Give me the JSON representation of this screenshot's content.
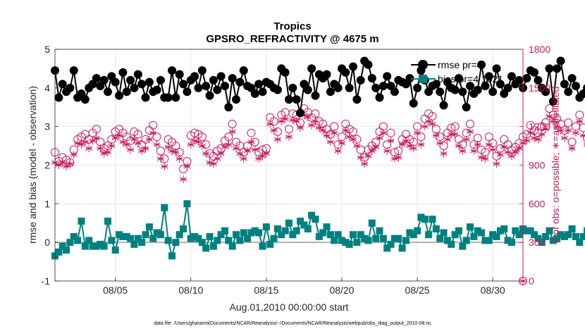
{
  "chart_data": {
    "type": "line",
    "title": "Tropics",
    "subtitle": "GPSRO_REFRACTIVITY @ 4675 m",
    "xlabel": "Aug.01,2010 00:00:00 start",
    "ylabel": "rmse and bias (model - observation)",
    "y2label": "# of obs: o=possible; ∗=assimilated",
    "footnote": "data file: /Users/gharamti/Documents/NCAR/Reanalysis/~/Documents/NCAR/Reanalysis/webpub/obs_diag_output_2010-08.nc",
    "xlim": [
      1,
      32
    ],
    "ylim": [
      -1,
      5
    ],
    "y2lim": [
      0,
      1800
    ],
    "x_ticks": [
      5,
      10,
      15,
      20,
      25,
      30
    ],
    "x_tick_labels": [
      "08/05",
      "08/10",
      "08/15",
      "08/20",
      "08/25",
      "08/30"
    ],
    "y_ticks": [
      -1,
      0,
      1,
      2,
      3,
      4,
      5
    ],
    "y_tick_labels": [
      "-1",
      "0",
      "1",
      "2",
      "3",
      "4",
      "5"
    ],
    "y2_ticks": [
      0,
      300,
      600,
      900,
      1200,
      1500,
      1800
    ],
    "y2_tick_labels": [
      "0",
      "300",
      "600",
      "900",
      "1200",
      "1500",
      "1800"
    ],
    "grid": true,
    "legend_position": "top-right",
    "x_step_days": 0.25,
    "x_start_day": 1.0,
    "series": [
      {
        "name": "rmse pr=4",
        "legend_label": "rmse pr=4",
        "axis": "left",
        "color": "#000000",
        "marker": "circle",
        "values": [
          4.45,
          3.75,
          4.1,
          3.9,
          4.0,
          4.45,
          3.75,
          3.85,
          3.7,
          4.0,
          4.1,
          4.25,
          4.05,
          4.2,
          3.9,
          4.3,
          4.15,
          3.8,
          4.4,
          3.9,
          4.2,
          4.0,
          4.35,
          4.1,
          3.75,
          4.15,
          3.9,
          3.95,
          4.2,
          3.75,
          3.75,
          4.45,
          3.75,
          4.35,
          4.1,
          3.9,
          4.2,
          4.3,
          4.0,
          4.45,
          4.05,
          3.8,
          4.2,
          3.95,
          4.3,
          4.05,
          3.5,
          4.25,
          3.7,
          4.15,
          4.45,
          4.05,
          4.0,
          3.85,
          4.1,
          3.9,
          4.15,
          4.1,
          4.0,
          3.95,
          4.5,
          4.4,
          3.7,
          4.0,
          3.7,
          3.35,
          4.1,
          3.95,
          4.5,
          3.8,
          4.35,
          4.25,
          4.35,
          3.9,
          4.1,
          4.0,
          4.5,
          4.4,
          4.0,
          4.55,
          3.7,
          4.2,
          4.7,
          4.6,
          4.25,
          4.0,
          3.75,
          4.05,
          4.3,
          4.05,
          3.9,
          4.2,
          4.15,
          4.1,
          4.25,
          3.6,
          4.0,
          4.45,
          4.2,
          3.9,
          4.05,
          4.1,
          3.9,
          3.55,
          4.15,
          4.0,
          3.95,
          4.25,
          3.9,
          3.5,
          4.05,
          3.85,
          3.95,
          4.6,
          4.05,
          4.3,
          3.9,
          4.5,
          4.1,
          3.85,
          4.0,
          4.3,
          4.1,
          4.2,
          4.0,
          4.25,
          4.45,
          4.4,
          4.2,
          4.0,
          3.9,
          4.5,
          3.65,
          4.5,
          4.7,
          4.1,
          3.9,
          4.25,
          4.05,
          3.75,
          3.85,
          4.0,
          3.75,
          3.9,
          4.05,
          4.55,
          3.6,
          4.15,
          4.45,
          3.95,
          3.95,
          4.3,
          4.1,
          4.0,
          4.25,
          4.45,
          4.0,
          3.95,
          4.0,
          3.95,
          4.1,
          4.3,
          3.95,
          4.6,
          4.0,
          4.1,
          3.95,
          4.05,
          4.25,
          4.15,
          4.0,
          3.85,
          4.05,
          3.95,
          4.1,
          4.05,
          3.9,
          4.3,
          4.0,
          4.15,
          4.55,
          3.95,
          4.0,
          4.05,
          4.3,
          4.0,
          4.75,
          4.0,
          4.1,
          4.25,
          4.1,
          4.05,
          3.95,
          4.35,
          4.0,
          4.0,
          4.0,
          4.4,
          4.2,
          3.95,
          3.95,
          4.0,
          4.25,
          4.45
        ]
      },
      {
        "name": "bias pr=4 1621",
        "legend_label": "bias pr=4 1621",
        "axis": "left",
        "color": "#008080",
        "marker": "square",
        "values": [
          -0.35,
          -0.25,
          -0.1,
          -0.2,
          0.0,
          0.15,
          0.05,
          0.55,
          -0.1,
          0.05,
          -0.1,
          -0.1,
          -0.05,
          -0.1,
          0.55,
          0.05,
          -0.2,
          0.2,
          0.15,
          0.15,
          0.1,
          -0.05,
          0.1,
          0.0,
          0.2,
          0.4,
          0.1,
          0.25,
          0.2,
          0.9,
          0.05,
          -0.35,
          0.0,
          0.2,
          0.35,
          1.0,
          0.1,
          0.15,
          0.1,
          0.0,
          -0.15,
          0.15,
          -0.1,
          0.05,
          0.2,
          0.3,
          0.05,
          -0.1,
          0.2,
          0.05,
          0.25,
          0.1,
          0.25,
          0.3,
          0.25,
          -0.1,
          0.4,
          -0.05,
          0.1,
          0.35,
          0.2,
          0.3,
          0.5,
          0.2,
          0.3,
          0.55,
          0.45,
          0.35,
          0.7,
          0.6,
          0.15,
          0.25,
          0.4,
          0.2,
          0.05,
          0.2,
          0.05,
          0.0,
          -0.05,
          0.2,
          0.0,
          0.2,
          0.1,
          0.05,
          0.5,
          0.1,
          0.3,
          0.1,
          -0.15,
          -0.05,
          0.1,
          0.1,
          -0.15,
          0.05,
          0.25,
          0.2,
          0.3,
          0.65,
          0.6,
          0.2,
          0.6,
          0.35,
          0.1,
          0.25,
          0.05,
          -0.05,
          0.2,
          0.3,
          -0.1,
          0.05,
          0.4,
          0.15,
          0.3,
          0.25,
          0.05,
          0.05,
          0.2,
          0.15,
          0.3,
          0.35,
          0.05,
          0.0,
          0.3,
          0.2,
          0.35,
          0.3,
          0.3,
          0.2,
          0.1,
          0.0,
          0.15,
          0.3,
          0.05,
          0.1,
          0.2,
          0.15,
          0.2,
          0.35,
          0.15,
          0.0,
          0.15,
          0.3,
          0.0,
          0.1,
          -0.05,
          0.15,
          0.2,
          0.1,
          0.05,
          0.5,
          0.45,
          0.3,
          0.2,
          0.15,
          0.05,
          -0.1,
          -0.35,
          -0.35,
          -0.25,
          -0.15,
          -0.75,
          -0.75,
          -0.45,
          -0.45,
          -0.2,
          -0.45,
          0.0,
          0.1,
          0.05,
          0.25,
          0.0,
          0.4,
          0.3,
          0.05,
          0.2,
          0.3,
          0.2,
          0.25,
          0.45,
          0.55,
          0.6,
          0.4,
          0.35,
          0.2,
          0.15,
          0.25,
          0.0,
          0.1,
          0.15,
          0.05,
          0.2,
          0.2,
          0.35,
          0.3,
          0.15,
          0.1,
          0.45,
          0.3,
          0.25,
          0.35,
          0.3,
          0.5,
          0.45,
          0.6,
          0.55,
          0.4,
          0.35,
          0.4
        ]
      },
      {
        "name": "possible obs",
        "axis": "right",
        "color": "#c8195a",
        "marker": "open-circle",
        "values": [
          1000,
          930,
          960,
          940,
          920,
          1020,
          1100,
          1120,
          1140,
          1100,
          1150,
          1180,
          1080,
          1030,
          1050,
          1100,
          1160,
          1180,
          1150,
          1120,
          1090,
          1160,
          1140,
          1060,
          1100,
          1170,
          1210,
          1120,
          1010,
          950,
          1100,
          1080,
          1050,
          1000,
          870,
          930,
          1130,
          1150,
          1140,
          1120,
          1060,
          990,
          970,
          1010,
          1030,
          1090,
          1120,
          1220,
          1080,
          1050,
          1000,
          1050,
          1150,
          1080,
          1000,
          1020,
          1030,
          1270,
          1240,
          1160,
          1290,
          1310,
          1180,
          1300,
          1290,
          1230,
          1340,
          1310,
          1270,
          1300,
          1240,
          1220,
          1180,
          1140,
          1200,
          1060,
          1120,
          1220,
          1180,
          1160,
          1100,
          1020,
          960,
          1020,
          1050,
          1080,
          1160,
          1200,
          1060,
          1150,
          1000,
          1010,
          1100,
          1140,
          1100,
          1080,
          1200,
          1120,
          1260,
          1300,
          1280,
          1180,
          1120,
          1050,
          1150,
          1190,
          1200,
          1100,
          1060,
          1150,
          1220,
          1060,
          1110,
          1020,
          1000,
          1120,
          1070,
          970,
          1030,
          1100,
          1060,
          1020,
          1040,
          1070,
          1120,
          1140,
          1210,
          1170,
          1150,
          1200,
          1230,
          1340,
          1290,
          1260,
          1220,
          1170,
          1230,
          1080,
          1200,
          1290,
          1190,
          1110,
          1150,
          1090,
          1110,
          1080,
          1210,
          1180,
          1290,
          1090,
          1150,
          1190,
          1070,
          1200,
          1220,
          1130,
          1230,
          1160,
          1000,
          950,
          1120,
          1080,
          1020,
          1100,
          1100,
          1050,
          1080,
          1040,
          1080,
          1120,
          1050,
          1010,
          880,
          920,
          1010,
          900,
          960,
          1030,
          1150,
          1180,
          1100,
          1080,
          1060,
          1020,
          1090,
          1110,
          1080,
          1020,
          950,
          960,
          1000,
          1010,
          1110,
          1080,
          1030,
          1040,
          1050,
          1000,
          970,
          1090,
          1000,
          1060,
          960,
          940,
          930,
          960
        ]
      },
      {
        "name": "assimilated obs",
        "axis": "right",
        "color": "#c8195a",
        "marker": "asterisk",
        "values": [
          920,
          900,
          920,
          890,
          910,
          980,
          1070,
          1060,
          1080,
          1030,
          1090,
          1110,
          1030,
          990,
          1000,
          1050,
          1110,
          1130,
          1080,
          1060,
          1020,
          1100,
          1070,
          1010,
          1030,
          1100,
          1150,
          1060,
          950,
          890,
          1040,
          1010,
          1000,
          950,
          790,
          890,
          1060,
          1090,
          1080,
          1050,
          990,
          920,
          910,
          950,
          990,
          1040,
          1060,
          1160,
          1030,
          990,
          950,
          1010,
          1080,
          1020,
          950,
          970,
          990,
          1220,
          1170,
          1100,
          1240,
          1260,
          1120,
          1250,
          1240,
          1190,
          1290,
          1270,
          1210,
          1240,
          1190,
          1170,
          1130,
          1080,
          1150,
          1010,
          1070,
          1170,
          1120,
          1100,
          1050,
          960,
          910,
          970,
          1010,
          1040,
          1110,
          1150,
          1010,
          1090,
          950,
          960,
          1060,
          1090,
          1050,
          1030,
          1150,
          1060,
          1200,
          1240,
          1220,
          1130,
          1070,
          990,
          1100,
          1140,
          1140,
          1050,
          1010,
          1100,
          1160,
          1010,
          1060,
          960,
          950,
          1060,
          1020,
          910,
          980,
          1040,
          1000,
          970,
          1000,
          1030,
          1070,
          1090,
          1150,
          1110,
          1100,
          1140,
          1180,
          1280,
          1240,
          1200,
          1170,
          1110,
          1170,
          1030,
          1150,
          1240,
          1130,
          1060,
          1100,
          1030,
          1060,
          1030,
          1170,
          1130,
          1250,
          1040,
          1100,
          1140,
          1020,
          1140,
          1170,
          1080,
          1170,
          1100,
          950,
          900,
          1070,
          1030,
          970,
          1050,
          1050,
          1000,
          1020,
          990,
          1030,
          1080,
          1000,
          960,
          800,
          870,
          960,
          860,
          900,
          980,
          1100,
          1120,
          1040,
          1030,
          1010,
          970,
          1040,
          1060,
          1030,
          970,
          900,
          910,
          960,
          960,
          1060,
          1030,
          980,
          1000,
          1010,
          960,
          920,
          1040,
          940,
          1020,
          910,
          870,
          880,
          910
        ]
      }
    ]
  }
}
